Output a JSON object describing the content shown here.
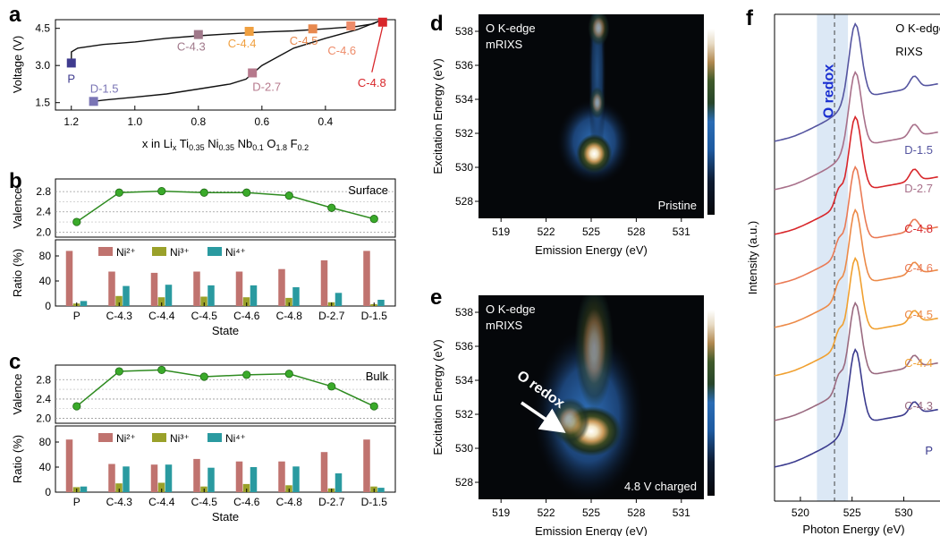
{
  "figure": {
    "panel_letters": [
      "a",
      "b",
      "c",
      "d",
      "e",
      "f"
    ]
  },
  "chart_data": [
    {
      "panel": "a",
      "type": "line",
      "xlabel_parts": [
        "x in Li",
        "x",
        " Ti",
        "0.35",
        " Ni",
        "0.35",
        " Nb",
        "0.1",
        " O",
        "1.8",
        " F",
        "0.2"
      ],
      "ylabel": "Voltage (V)",
      "xlim": [
        1.25,
        0.18
      ],
      "ylim": [
        1.2,
        4.85
      ],
      "xticks": [
        1.2,
        1.0,
        0.8,
        0.6,
        0.4
      ],
      "xtick_labels": [
        "1.2",
        "1.0",
        "0.8",
        "0.6",
        "0.4"
      ],
      "yticks": [
        1.5,
        3.0,
        4.5
      ],
      "ytick_labels": [
        "1.5",
        "3.0",
        "4.5"
      ],
      "charge_curve": [
        [
          1.2,
          3.1
        ],
        [
          1.2,
          3.55
        ],
        [
          1.18,
          3.7
        ],
        [
          1.1,
          3.85
        ],
        [
          1.0,
          3.95
        ],
        [
          0.9,
          4.1
        ],
        [
          0.8,
          4.2
        ],
        [
          0.7,
          4.28
        ],
        [
          0.6,
          4.35
        ],
        [
          0.5,
          4.4
        ],
        [
          0.4,
          4.48
        ],
        [
          0.3,
          4.58
        ],
        [
          0.25,
          4.68
        ],
        [
          0.23,
          4.8
        ]
      ],
      "discharge_curve": [
        [
          0.23,
          4.8
        ],
        [
          0.3,
          4.45
        ],
        [
          0.4,
          4.1
        ],
        [
          0.5,
          3.7
        ],
        [
          0.55,
          3.35
        ],
        [
          0.6,
          3.0
        ],
        [
          0.65,
          2.45
        ],
        [
          0.7,
          2.25
        ],
        [
          0.8,
          2.05
        ],
        [
          0.9,
          1.85
        ],
        [
          1.0,
          1.72
        ],
        [
          1.1,
          1.6
        ],
        [
          1.13,
          1.55
        ]
      ],
      "points": [
        {
          "label": "P",
          "x": 1.2,
          "y": 3.1,
          "color": "#3f3b8f"
        },
        {
          "label": "C-4.3",
          "x": 0.8,
          "y": 4.25,
          "color": "#a0788a"
        },
        {
          "label": "C-4.4",
          "x": 0.64,
          "y": 4.38,
          "color": "#f0a040"
        },
        {
          "label": "C-4.5",
          "x": 0.44,
          "y": 4.48,
          "color": "#e8894f"
        },
        {
          "label": "C-4.6",
          "x": 0.32,
          "y": 4.6,
          "color": "#ee8c6a"
        },
        {
          "label": "C-4.8",
          "x": 0.22,
          "y": 4.75,
          "color": "#d8262a"
        },
        {
          "label": "D-2.7",
          "x": 0.63,
          "y": 2.7,
          "color": "#b6798c"
        },
        {
          "label": "D-1.5",
          "x": 1.13,
          "y": 1.55,
          "color": "#7a75b5"
        }
      ]
    },
    {
      "panel": "b",
      "type": "bar",
      "annotation": "Surface",
      "categories": [
        "P",
        "C-4.3",
        "C-4.4",
        "C-4.5",
        "C-4.6",
        "C-4.8",
        "D-2.7",
        "D-1.5"
      ],
      "xlabel": "State",
      "valence": {
        "ylabel": "Valence",
        "values": [
          2.2,
          2.78,
          2.81,
          2.78,
          2.78,
          2.72,
          2.48,
          2.26
        ],
        "ylim": [
          1.9,
          3.05
        ],
        "yticks": [
          2.0,
          2.4,
          2.8
        ],
        "ytick_labels": [
          "2.0",
          "2.4",
          "2.8"
        ],
        "color": "#2e8b20"
      },
      "ratio": {
        "ylabel": "Ratio (%)",
        "ylim": [
          0,
          100
        ],
        "yticks": [
          0,
          40,
          80
        ],
        "ytick_labels": [
          "0",
          "40",
          "80"
        ],
        "series": [
          {
            "name": "Ni²⁺",
            "values": [
              88,
              55,
              53,
              55,
              55,
              59,
              73,
              88
            ],
            "color": "#c0736f"
          },
          {
            "name": "Ni³⁺",
            "values": [
              4,
              16,
              14,
              15,
              14,
              13,
              6,
              3
            ],
            "color": "#9aa12a"
          },
          {
            "name": "Ni⁴⁺",
            "values": [
              8,
              32,
              34,
              33,
              33,
              30,
              21,
              10
            ],
            "color": "#2a9aa0"
          }
        ]
      }
    },
    {
      "panel": "c",
      "type": "bar",
      "annotation": "Bulk",
      "categories": [
        "P",
        "C-4.3",
        "C-4.4",
        "C-4.5",
        "C-4.6",
        "C-4.8",
        "D-2.7",
        "D-1.5"
      ],
      "xlabel": "State",
      "valence": {
        "ylabel": "Valence",
        "values": [
          2.25,
          2.97,
          3.0,
          2.86,
          2.9,
          2.92,
          2.66,
          2.25
        ],
        "ylim": [
          1.9,
          3.1
        ],
        "yticks": [
          2.0,
          2.4,
          2.8
        ],
        "ytick_labels": [
          "2.0",
          "2.4",
          "2.8"
        ],
        "color": "#2e8b20"
      },
      "ratio": {
        "ylabel": "Ratio (%)",
        "ylim": [
          0,
          100
        ],
        "yticks": [
          0,
          40,
          80
        ],
        "ytick_labels": [
          "0",
          "40",
          "80"
        ],
        "series": [
          {
            "name": "Ni²⁺",
            "values": [
              84,
              45,
              44,
              53,
              49,
              49,
              64,
              84
            ],
            "color": "#c0736f"
          },
          {
            "name": "Ni³⁺",
            "values": [
              8,
              14,
              15,
              9,
              13,
              11,
              6,
              9
            ],
            "color": "#9aa12a"
          },
          {
            "name": "Ni⁴⁺",
            "values": [
              9,
              41,
              44,
              39,
              40,
              41,
              30,
              7
            ],
            "color": "#2a9aa0"
          }
        ]
      }
    },
    {
      "panel": "d",
      "type": "heatmap",
      "label_lines": [
        "O K-edge",
        "mRIXS"
      ],
      "corner_label": "Pristine",
      "xlabel": "Emission Energy (eV)",
      "ylabel": "Excitation Energy (eV)",
      "xlim": [
        517.5,
        532.5
      ],
      "ylim": [
        527,
        539
      ],
      "xticks": [
        519,
        522,
        525,
        528,
        531
      ],
      "xtick_labels": [
        "519",
        "522",
        "525",
        "528",
        "531"
      ],
      "yticks": [
        528,
        530,
        532,
        534,
        536,
        538
      ],
      "ytick_labels": [
        "528",
        "530",
        "532",
        "534",
        "536",
        "538"
      ],
      "features": [
        {
          "x": 525.2,
          "y": 530.8,
          "intensity": 1.0
        },
        {
          "x": 525.4,
          "y": 533.8,
          "intensity": 0.5
        },
        {
          "x": 525.5,
          "y": 538.2,
          "intensity": 0.55
        }
      ]
    },
    {
      "panel": "e",
      "type": "heatmap",
      "label_lines": [
        "O K-edge",
        "mRIXS"
      ],
      "corner_label": "4.8 V charged",
      "arrow_label": "O redox",
      "xlabel": "Emission Energy (eV)",
      "ylabel": "Excitation Energy (eV)",
      "xlim": [
        517.5,
        532.5
      ],
      "ylim": [
        527,
        539
      ],
      "xticks": [
        519,
        522,
        525,
        528,
        531
      ],
      "xtick_labels": [
        "519",
        "522",
        "525",
        "528",
        "531"
      ],
      "yticks": [
        528,
        530,
        532,
        534,
        536,
        538
      ],
      "ytick_labels": [
        "528",
        "530",
        "532",
        "534",
        "536",
        "538"
      ],
      "features": [
        {
          "x": 525.0,
          "y": 531.0,
          "intensity": 1.0
        },
        {
          "x": 523.6,
          "y": 531.6,
          "intensity": 0.6
        },
        {
          "x": 525.2,
          "y": 536.0,
          "intensity": 0.5
        }
      ]
    },
    {
      "panel": "f",
      "type": "line",
      "label_lines": [
        "O K-edge",
        "RIXS"
      ],
      "band_label": "O redox",
      "xlabel": "Photon Energy (eV)",
      "ylabel": "Intensity (a.u.)",
      "xlim": [
        517.5,
        533.5
      ],
      "xticks": [
        520,
        525,
        530
      ],
      "xtick_labels": [
        "520",
        "525",
        "530"
      ],
      "band": [
        521.6,
        524.6
      ],
      "dashed_line": 523.3,
      "series": [
        {
          "name": "P",
          "color": "#3b3b8e"
        },
        {
          "name": "C-4.3",
          "color": "#9a6a80"
        },
        {
          "name": "C-4.4",
          "color": "#f0a030"
        },
        {
          "name": "C-4.5",
          "color": "#ec8a48"
        },
        {
          "name": "C-4.6",
          "color": "#ea7a55"
        },
        {
          "name": "C-4.8",
          "color": "#d8262a"
        },
        {
          "name": "D-2.7",
          "color": "#a8708a"
        },
        {
          "name": "D-1.5",
          "color": "#5555a0"
        }
      ]
    }
  ]
}
